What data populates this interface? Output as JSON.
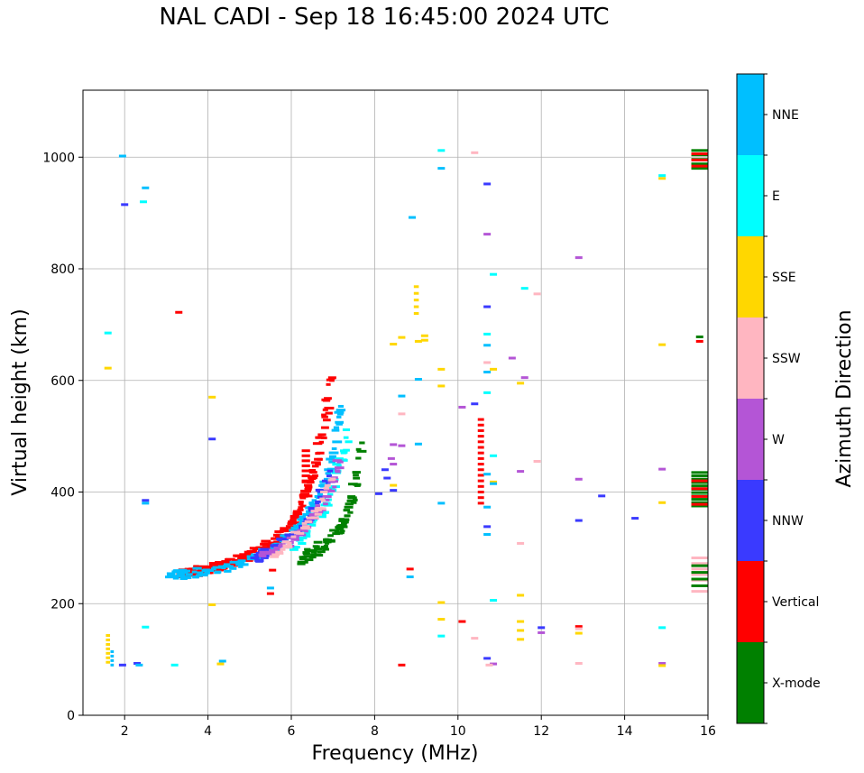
{
  "chart_data": {
    "type": "scatter",
    "title": "NAL CADI - Sep 18 16:45:00 2024 UTC",
    "xlabel": "Frequency (MHz)",
    "ylabel": "Virtual height (km)",
    "xlim": [
      1,
      16
    ],
    "ylim": [
      0,
      1120
    ],
    "xticks": [
      2,
      4,
      6,
      8,
      10,
      12,
      14,
      16
    ],
    "yticks": [
      0,
      200,
      400,
      600,
      800,
      1000
    ],
    "grid": true,
    "colorbar": {
      "label": "Azimuth Direction",
      "categories": [
        {
          "name": "X-mode",
          "color": "#008000"
        },
        {
          "name": "Vertical",
          "color": "#ff0000"
        },
        {
          "name": "NNW",
          "color": "#3a3aff"
        },
        {
          "name": "W",
          "color": "#b455d6"
        },
        {
          "name": "SSW",
          "color": "#ffb6c1"
        },
        {
          "name": "SSE",
          "color": "#ffd700"
        },
        {
          "name": "E",
          "color": "#00ffff"
        },
        {
          "name": "NNE",
          "color": "#00bfff"
        }
      ]
    },
    "traces": [
      {
        "name": "Vertical",
        "x": [
          3.3,
          3.6,
          3.9,
          4.2,
          4.5,
          4.8,
          5.1,
          5.4,
          5.7,
          6.0,
          6.2,
          6.4,
          6.6,
          6.8,
          7.0
        ],
        "y": [
          252,
          255,
          260,
          265,
          272,
          280,
          290,
          302,
          318,
          340,
          370,
          410,
          450,
          520,
          620
        ],
        "spread": 9
      },
      {
        "name": "NNE",
        "x": [
          3.1,
          3.5,
          4.0,
          4.6,
          5.2,
          5.7,
          6.1,
          6.4,
          6.7,
          7.0,
          7.2
        ],
        "y": [
          250,
          253,
          258,
          268,
          285,
          305,
          330,
          360,
          400,
          460,
          560
        ],
        "spread": 8
      },
      {
        "name": "X-mode",
        "x": [
          6.2,
          6.5,
          6.8,
          7.1,
          7.3,
          7.5,
          7.7
        ],
        "y": [
          280,
          292,
          305,
          325,
          350,
          395,
          500
        ],
        "spread": 10
      },
      {
        "name": "E",
        "x": [
          6.0,
          6.4,
          6.8,
          7.1,
          7.4
        ],
        "y": [
          300,
          330,
          370,
          430,
          520
        ],
        "spread": 10
      },
      {
        "name": "NNW",
        "x": [
          5.1,
          5.5,
          6.0,
          6.5,
          7.0
        ],
        "y": [
          280,
          295,
          320,
          360,
          440
        ],
        "spread": 8
      },
      {
        "name": "W",
        "x": [
          5.3,
          5.8,
          6.3,
          6.8,
          7.2
        ],
        "y": [
          285,
          300,
          330,
          380,
          460
        ],
        "spread": 8
      },
      {
        "name": "SSW",
        "x": [
          5.6,
          6.1,
          6.6,
          7.0
        ],
        "y": [
          290,
          320,
          360,
          430
        ],
        "spread": 8
      }
    ],
    "clusters": [
      {
        "name": "Vertical",
        "x": 10.55,
        "ymin": 380,
        "ymax": 530,
        "step": 10,
        "w": 0.15
      },
      {
        "name": "Vertical",
        "x": 6.35,
        "ymin": 420,
        "ymax": 480,
        "step": 9,
        "w": 0.2
      },
      {
        "name": "SSE",
        "x": 9.0,
        "ymin": 720,
        "ymax": 770,
        "step": 12,
        "w": 0.12
      },
      {
        "name": "X-mode",
        "x": 15.8,
        "ymin": 375,
        "ymax": 435,
        "step": 6,
        "w": 0.4
      },
      {
        "name": "Vertical",
        "x": 15.8,
        "ymin": 378,
        "ymax": 420,
        "step": 14,
        "w": 0.4
      },
      {
        "name": "SSW",
        "x": 15.8,
        "ymin": 222,
        "ymax": 285,
        "step": 10,
        "w": 0.4
      },
      {
        "name": "X-mode",
        "x": 15.8,
        "ymin": 232,
        "ymax": 275,
        "step": 12,
        "w": 0.4
      },
      {
        "name": "X-mode",
        "x": 15.8,
        "ymin": 980,
        "ymax": 1018,
        "step": 8,
        "w": 0.4
      },
      {
        "name": "Vertical",
        "x": 15.8,
        "ymin": 984,
        "ymax": 1006,
        "step": 11,
        "w": 0.4
      },
      {
        "name": "SSE",
        "x": 1.6,
        "ymin": 95,
        "ymax": 150,
        "step": 8,
        "w": 0.1
      },
      {
        "name": "NNE",
        "x": 1.7,
        "ymin": 90,
        "ymax": 120,
        "step": 8,
        "w": 0.08
      }
    ],
    "points": [
      {
        "name": "NNE",
        "x": 1.95,
        "y": 1002
      },
      {
        "name": "NNE",
        "x": 2.5,
        "y": 945
      },
      {
        "name": "E",
        "x": 2.45,
        "y": 920
      },
      {
        "name": "NNW",
        "x": 2.0,
        "y": 915
      },
      {
        "name": "E",
        "x": 1.6,
        "y": 685
      },
      {
        "name": "SSE",
        "x": 1.6,
        "y": 622
      },
      {
        "name": "Vertical",
        "x": 3.3,
        "y": 722
      },
      {
        "name": "SSE",
        "x": 4.1,
        "y": 570
      },
      {
        "name": "NNW",
        "x": 4.1,
        "y": 495
      },
      {
        "name": "NNW",
        "x": 2.5,
        "y": 385
      },
      {
        "name": "NNE",
        "x": 2.5,
        "y": 380
      },
      {
        "name": "SSE",
        "x": 4.1,
        "y": 198
      },
      {
        "name": "E",
        "x": 2.5,
        "y": 158
      },
      {
        "name": "SSE",
        "x": 4.3,
        "y": 92
      },
      {
        "name": "NNE",
        "x": 4.35,
        "y": 97
      },
      {
        "name": "NNW",
        "x": 2.3,
        "y": 93
      },
      {
        "name": "NNE",
        "x": 2.35,
        "y": 90
      },
      {
        "name": "NNW",
        "x": 1.95,
        "y": 90
      },
      {
        "name": "E",
        "x": 3.2,
        "y": 90
      },
      {
        "name": "NNE",
        "x": 5.5,
        "y": 228
      },
      {
        "name": "Vertical",
        "x": 5.5,
        "y": 218
      },
      {
        "name": "Vertical",
        "x": 5.55,
        "y": 260
      },
      {
        "name": "NNE",
        "x": 3.1,
        "y": 252
      },
      {
        "name": "NNE",
        "x": 8.9,
        "y": 892
      },
      {
        "name": "SSE",
        "x": 8.45,
        "y": 665
      },
      {
        "name": "SSE",
        "x": 8.65,
        "y": 677
      },
      {
        "name": "SSE",
        "x": 9.2,
        "y": 680
      },
      {
        "name": "SSE",
        "x": 9.05,
        "y": 670
      },
      {
        "name": "NNE",
        "x": 8.65,
        "y": 572
      },
      {
        "name": "NNE",
        "x": 9.05,
        "y": 602
      },
      {
        "name": "SSW",
        "x": 8.65,
        "y": 540
      },
      {
        "name": "W",
        "x": 8.45,
        "y": 485
      },
      {
        "name": "W",
        "x": 8.65,
        "y": 483
      },
      {
        "name": "NNE",
        "x": 9.05,
        "y": 486
      },
      {
        "name": "W",
        "x": 8.4,
        "y": 460
      },
      {
        "name": "W",
        "x": 8.45,
        "y": 450
      },
      {
        "name": "NNW",
        "x": 8.25,
        "y": 440
      },
      {
        "name": "NNW",
        "x": 8.3,
        "y": 425
      },
      {
        "name": "SSE",
        "x": 8.45,
        "y": 412
      },
      {
        "name": "NNW",
        "x": 8.45,
        "y": 403
      },
      {
        "name": "NNW",
        "x": 8.1,
        "y": 397
      },
      {
        "name": "Vertical",
        "x": 8.65,
        "y": 90
      },
      {
        "name": "Vertical",
        "x": 8.85,
        "y": 262
      },
      {
        "name": "NNE",
        "x": 8.85,
        "y": 248
      },
      {
        "name": "E",
        "x": 9.6,
        "y": 1012
      },
      {
        "name": "NNE",
        "x": 9.6,
        "y": 980
      },
      {
        "name": "SSW",
        "x": 10.4,
        "y": 1008
      },
      {
        "name": "NNW",
        "x": 10.7,
        "y": 952
      },
      {
        "name": "W",
        "x": 10.7,
        "y": 862
      },
      {
        "name": "E",
        "x": 10.85,
        "y": 790
      },
      {
        "name": "E",
        "x": 11.6,
        "y": 765
      },
      {
        "name": "SSW",
        "x": 11.9,
        "y": 755
      },
      {
        "name": "NNW",
        "x": 10.7,
        "y": 732
      },
      {
        "name": "E",
        "x": 10.7,
        "y": 683
      },
      {
        "name": "NNE",
        "x": 10.7,
        "y": 663
      },
      {
        "name": "W",
        "x": 11.3,
        "y": 640
      },
      {
        "name": "SSW",
        "x": 10.7,
        "y": 632
      },
      {
        "name": "SSE",
        "x": 10.85,
        "y": 620
      },
      {
        "name": "NNE",
        "x": 10.7,
        "y": 615
      },
      {
        "name": "W",
        "x": 11.6,
        "y": 605
      },
      {
        "name": "SSE",
        "x": 11.5,
        "y": 595
      },
      {
        "name": "SSE",
        "x": 9.6,
        "y": 620
      },
      {
        "name": "SSE",
        "x": 9.6,
        "y": 590
      },
      {
        "name": "E",
        "x": 10.7,
        "y": 578
      },
      {
        "name": "NNW",
        "x": 10.4,
        "y": 558
      },
      {
        "name": "W",
        "x": 10.1,
        "y": 552
      },
      {
        "name": "E",
        "x": 10.85,
        "y": 465
      },
      {
        "name": "SSW",
        "x": 11.9,
        "y": 455
      },
      {
        "name": "W",
        "x": 11.5,
        "y": 437
      },
      {
        "name": "NNE",
        "x": 10.7,
        "y": 432
      },
      {
        "name": "SSE",
        "x": 10.85,
        "y": 418
      },
      {
        "name": "NNE",
        "x": 10.85,
        "y": 415
      },
      {
        "name": "NNE",
        "x": 9.6,
        "y": 380
      },
      {
        "name": "NNE",
        "x": 10.7,
        "y": 373
      },
      {
        "name": "NNW",
        "x": 10.7,
        "y": 338
      },
      {
        "name": "NNE",
        "x": 10.7,
        "y": 324
      },
      {
        "name": "SSW",
        "x": 11.5,
        "y": 308
      },
      {
        "name": "SSE",
        "x": 11.5,
        "y": 215
      },
      {
        "name": "E",
        "x": 10.85,
        "y": 206
      },
      {
        "name": "SSE",
        "x": 9.6,
        "y": 202
      },
      {
        "name": "SSE",
        "x": 9.6,
        "y": 172
      },
      {
        "name": "Vertical",
        "x": 10.1,
        "y": 168
      },
      {
        "name": "SSE",
        "x": 11.5,
        "y": 168
      },
      {
        "name": "SSE",
        "x": 11.5,
        "y": 152
      },
      {
        "name": "NNW",
        "x": 12.0,
        "y": 157
      },
      {
        "name": "W",
        "x": 12.0,
        "y": 148
      },
      {
        "name": "SSE",
        "x": 11.5,
        "y": 136
      },
      {
        "name": "SSW",
        "x": 10.4,
        "y": 138
      },
      {
        "name": "E",
        "x": 9.6,
        "y": 142
      },
      {
        "name": "NNW",
        "x": 10.7,
        "y": 102
      },
      {
        "name": "W",
        "x": 10.85,
        "y": 92
      },
      {
        "name": "SSW",
        "x": 10.75,
        "y": 90
      },
      {
        "name": "W",
        "x": 12.9,
        "y": 820
      },
      {
        "name": "W",
        "x": 12.9,
        "y": 423
      },
      {
        "name": "NNW",
        "x": 13.45,
        "y": 393
      },
      {
        "name": "NNW",
        "x": 12.9,
        "y": 349
      },
      {
        "name": "NNW",
        "x": 14.25,
        "y": 353
      },
      {
        "name": "Vertical",
        "x": 12.9,
        "y": 159
      },
      {
        "name": "SSW",
        "x": 12.9,
        "y": 155
      },
      {
        "name": "SSE",
        "x": 12.9,
        "y": 147
      },
      {
        "name": "SSW",
        "x": 12.9,
        "y": 93
      },
      {
        "name": "SSE",
        "x": 14.9,
        "y": 962
      },
      {
        "name": "E",
        "x": 14.9,
        "y": 967
      },
      {
        "name": "SSE",
        "x": 14.9,
        "y": 664
      },
      {
        "name": "W",
        "x": 14.9,
        "y": 441
      },
      {
        "name": "SSE",
        "x": 14.9,
        "y": 381
      },
      {
        "name": "E",
        "x": 14.9,
        "y": 157
      },
      {
        "name": "W",
        "x": 14.9,
        "y": 93
      },
      {
        "name": "SSE",
        "x": 14.9,
        "y": 89
      },
      {
        "name": "X-mode",
        "x": 15.8,
        "y": 678
      },
      {
        "name": "Vertical",
        "x": 15.8,
        "y": 670
      },
      {
        "name": "SSE",
        "x": 9.2,
        "y": 672
      }
    ]
  }
}
